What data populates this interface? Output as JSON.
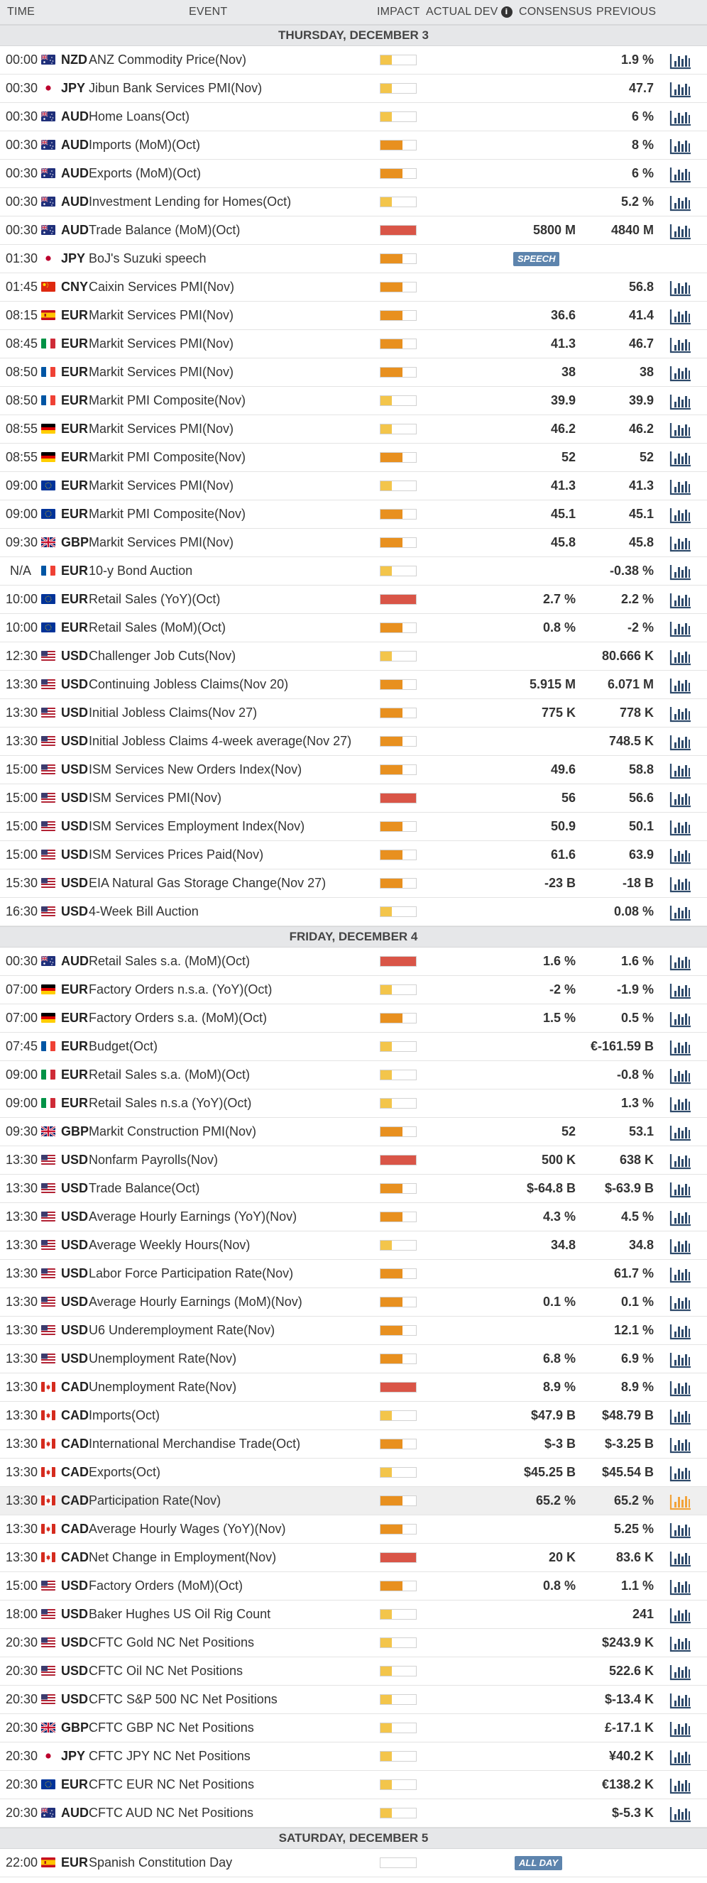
{
  "header": {
    "time": "TIME",
    "event": "EVENT",
    "impact": "IMPACT",
    "actual": "ACTUAL",
    "dev": "DEV",
    "consensus": "CONSENSUS",
    "previous": "PREVIOUS"
  },
  "colors": {
    "impact_low": "#f3c54b",
    "impact_medium": "#e8901f",
    "impact_high": "#d95547",
    "chart_icon": "#2e4a6b",
    "chart_icon_active": "#f2a33a",
    "badge_bg": "#5d84ad"
  },
  "days": [
    {
      "title": "THURSDAY, DECEMBER 3",
      "rows": [
        {
          "time": "00:00",
          "flag": "au",
          "currency": "NZD",
          "event": "ANZ Commodity Price(Nov)",
          "impact": "low",
          "consensus": "",
          "previous": "1.9 %"
        },
        {
          "time": "00:30",
          "flag": "jp",
          "currency": "JPY",
          "event": "Jibun Bank Services PMI(Nov)",
          "impact": "low",
          "consensus": "",
          "previous": "47.7"
        },
        {
          "time": "00:30",
          "flag": "au",
          "currency": "AUD",
          "event": "Home Loans(Oct)",
          "impact": "low",
          "consensus": "",
          "previous": "6 %"
        },
        {
          "time": "00:30",
          "flag": "au",
          "currency": "AUD",
          "event": "Imports (MoM)(Oct)",
          "impact": "medium",
          "consensus": "",
          "previous": "8 %"
        },
        {
          "time": "00:30",
          "flag": "au",
          "currency": "AUD",
          "event": "Exports (MoM)(Oct)",
          "impact": "medium",
          "consensus": "",
          "previous": "6 %"
        },
        {
          "time": "00:30",
          "flag": "au",
          "currency": "AUD",
          "event": "Investment Lending for Homes(Oct)",
          "impact": "low",
          "consensus": "",
          "previous": "5.2 %"
        },
        {
          "time": "00:30",
          "flag": "au",
          "currency": "AUD",
          "event": "Trade Balance (MoM)(Oct)",
          "impact": "high",
          "consensus": "5800 M",
          "previous": "4840 M"
        },
        {
          "time": "01:30",
          "flag": "jp",
          "currency": "JPY",
          "event": "BoJ's Suzuki speech",
          "impact": "medium",
          "consensus": "",
          "previous": "",
          "badge": "SPEECH",
          "nochart": true
        },
        {
          "time": "01:45",
          "flag": "cn",
          "currency": "CNY",
          "event": "Caixin Services PMI(Nov)",
          "impact": "medium",
          "consensus": "",
          "previous": "56.8"
        },
        {
          "time": "08:15",
          "flag": "es",
          "currency": "EUR",
          "event": "Markit Services PMI(Nov)",
          "impact": "medium",
          "consensus": "36.6",
          "previous": "41.4"
        },
        {
          "time": "08:45",
          "flag": "it",
          "currency": "EUR",
          "event": "Markit Services PMI(Nov)",
          "impact": "medium",
          "consensus": "41.3",
          "previous": "46.7"
        },
        {
          "time": "08:50",
          "flag": "fr",
          "currency": "EUR",
          "event": "Markit Services PMI(Nov)",
          "impact": "medium",
          "consensus": "38",
          "previous": "38"
        },
        {
          "time": "08:50",
          "flag": "fr",
          "currency": "EUR",
          "event": "Markit PMI Composite(Nov)",
          "impact": "low",
          "consensus": "39.9",
          "previous": "39.9"
        },
        {
          "time": "08:55",
          "flag": "de",
          "currency": "EUR",
          "event": "Markit Services PMI(Nov)",
          "impact": "low",
          "consensus": "46.2",
          "previous": "46.2"
        },
        {
          "time": "08:55",
          "flag": "de",
          "currency": "EUR",
          "event": "Markit PMI Composite(Nov)",
          "impact": "medium",
          "consensus": "52",
          "previous": "52"
        },
        {
          "time": "09:00",
          "flag": "eu",
          "currency": "EUR",
          "event": "Markit Services PMI(Nov)",
          "impact": "low",
          "consensus": "41.3",
          "previous": "41.3"
        },
        {
          "time": "09:00",
          "flag": "eu",
          "currency": "EUR",
          "event": "Markit PMI Composite(Nov)",
          "impact": "medium",
          "consensus": "45.1",
          "previous": "45.1"
        },
        {
          "time": "09:30",
          "flag": "gb",
          "currency": "GBP",
          "event": "Markit Services PMI(Nov)",
          "impact": "medium",
          "consensus": "45.8",
          "previous": "45.8"
        },
        {
          "time": "N/A",
          "flag": "fr",
          "currency": "EUR",
          "event": "10-y Bond Auction",
          "impact": "low",
          "consensus": "",
          "previous": "-0.38 %"
        },
        {
          "time": "10:00",
          "flag": "eu",
          "currency": "EUR",
          "event": "Retail Sales (YoY)(Oct)",
          "impact": "high",
          "consensus": "2.7 %",
          "previous": "2.2 %"
        },
        {
          "time": "10:00",
          "flag": "eu",
          "currency": "EUR",
          "event": "Retail Sales (MoM)(Oct)",
          "impact": "medium",
          "consensus": "0.8 %",
          "previous": "-2 %"
        },
        {
          "time": "12:30",
          "flag": "us",
          "currency": "USD",
          "event": "Challenger Job Cuts(Nov)",
          "impact": "low",
          "consensus": "",
          "previous": "80.666 K"
        },
        {
          "time": "13:30",
          "flag": "us",
          "currency": "USD",
          "event": "Continuing Jobless Claims(Nov 20)",
          "impact": "medium",
          "consensus": "5.915 M",
          "previous": "6.071 M"
        },
        {
          "time": "13:30",
          "flag": "us",
          "currency": "USD",
          "event": "Initial Jobless Claims(Nov 27)",
          "impact": "medium",
          "consensus": "775 K",
          "previous": "778 K"
        },
        {
          "time": "13:30",
          "flag": "us",
          "currency": "USD",
          "event": "Initial Jobless Claims 4-week average(Nov 27)",
          "impact": "medium",
          "consensus": "",
          "previous": "748.5 K"
        },
        {
          "time": "15:00",
          "flag": "us",
          "currency": "USD",
          "event": "ISM Services New Orders Index(Nov)",
          "impact": "medium",
          "consensus": "49.6",
          "previous": "58.8"
        },
        {
          "time": "15:00",
          "flag": "us",
          "currency": "USD",
          "event": "ISM Services PMI(Nov)",
          "impact": "high",
          "consensus": "56",
          "previous": "56.6"
        },
        {
          "time": "15:00",
          "flag": "us",
          "currency": "USD",
          "event": "ISM Services Employment Index(Nov)",
          "impact": "medium",
          "consensus": "50.9",
          "previous": "50.1"
        },
        {
          "time": "15:00",
          "flag": "us",
          "currency": "USD",
          "event": "ISM Services Prices Paid(Nov)",
          "impact": "medium",
          "consensus": "61.6",
          "previous": "63.9"
        },
        {
          "time": "15:30",
          "flag": "us",
          "currency": "USD",
          "event": "EIA Natural Gas Storage Change(Nov 27)",
          "impact": "medium",
          "consensus": "-23 B",
          "previous": "-18 B"
        },
        {
          "time": "16:30",
          "flag": "us",
          "currency": "USD",
          "event": "4-Week Bill Auction",
          "impact": "low",
          "consensus": "",
          "previous": "0.08 %"
        }
      ]
    },
    {
      "title": "FRIDAY, DECEMBER 4",
      "rows": [
        {
          "time": "00:30",
          "flag": "au",
          "currency": "AUD",
          "event": "Retail Sales s.a. (MoM)(Oct)",
          "impact": "high",
          "consensus": "1.6 %",
          "previous": "1.6 %"
        },
        {
          "time": "07:00",
          "flag": "de",
          "currency": "EUR",
          "event": "Factory Orders n.s.a. (YoY)(Oct)",
          "impact": "low",
          "consensus": "-2 %",
          "previous": "-1.9 %"
        },
        {
          "time": "07:00",
          "flag": "de",
          "currency": "EUR",
          "event": "Factory Orders s.a. (MoM)(Oct)",
          "impact": "medium",
          "consensus": "1.5 %",
          "previous": "0.5 %"
        },
        {
          "time": "07:45",
          "flag": "fr",
          "currency": "EUR",
          "event": "Budget(Oct)",
          "impact": "low",
          "consensus": "",
          "previous": "€-161.59 B"
        },
        {
          "time": "09:00",
          "flag": "it",
          "currency": "EUR",
          "event": "Retail Sales s.a. (MoM)(Oct)",
          "impact": "low",
          "consensus": "",
          "previous": "-0.8 %"
        },
        {
          "time": "09:00",
          "flag": "it",
          "currency": "EUR",
          "event": "Retail Sales n.s.a (YoY)(Oct)",
          "impact": "low",
          "consensus": "",
          "previous": "1.3 %"
        },
        {
          "time": "09:30",
          "flag": "gb",
          "currency": "GBP",
          "event": "Markit Construction PMI(Nov)",
          "impact": "medium",
          "consensus": "52",
          "previous": "53.1"
        },
        {
          "time": "13:30",
          "flag": "us",
          "currency": "USD",
          "event": "Nonfarm Payrolls(Nov)",
          "impact": "high",
          "consensus": "500 K",
          "previous": "638 K"
        },
        {
          "time": "13:30",
          "flag": "us",
          "currency": "USD",
          "event": "Trade Balance(Oct)",
          "impact": "medium",
          "consensus": "$-64.8 B",
          "previous": "$-63.9 B"
        },
        {
          "time": "13:30",
          "flag": "us",
          "currency": "USD",
          "event": "Average Hourly Earnings (YoY)(Nov)",
          "impact": "medium",
          "consensus": "4.3 %",
          "previous": "4.5 %"
        },
        {
          "time": "13:30",
          "flag": "us",
          "currency": "USD",
          "event": "Average Weekly Hours(Nov)",
          "impact": "low",
          "consensus": "34.8",
          "previous": "34.8"
        },
        {
          "time": "13:30",
          "flag": "us",
          "currency": "USD",
          "event": "Labor Force Participation Rate(Nov)",
          "impact": "medium",
          "consensus": "",
          "previous": "61.7 %"
        },
        {
          "time": "13:30",
          "flag": "us",
          "currency": "USD",
          "event": "Average Hourly Earnings (MoM)(Nov)",
          "impact": "medium",
          "consensus": "0.1 %",
          "previous": "0.1 %"
        },
        {
          "time": "13:30",
          "flag": "us",
          "currency": "USD",
          "event": "U6 Underemployment Rate(Nov)",
          "impact": "medium",
          "consensus": "",
          "previous": "12.1 %"
        },
        {
          "time": "13:30",
          "flag": "us",
          "currency": "USD",
          "event": "Unemployment Rate(Nov)",
          "impact": "medium",
          "consensus": "6.8 %",
          "previous": "6.9 %"
        },
        {
          "time": "13:30",
          "flag": "ca",
          "currency": "CAD",
          "event": "Unemployment Rate(Nov)",
          "impact": "high",
          "consensus": "8.9 %",
          "previous": "8.9 %"
        },
        {
          "time": "13:30",
          "flag": "ca",
          "currency": "CAD",
          "event": "Imports(Oct)",
          "impact": "low",
          "consensus": "$47.9 B",
          "previous": "$48.79 B"
        },
        {
          "time": "13:30",
          "flag": "ca",
          "currency": "CAD",
          "event": "International Merchandise Trade(Oct)",
          "impact": "medium",
          "consensus": "$-3 B",
          "previous": "$-3.25 B"
        },
        {
          "time": "13:30",
          "flag": "ca",
          "currency": "CAD",
          "event": "Exports(Oct)",
          "impact": "low",
          "consensus": "$45.25 B",
          "previous": "$45.54 B"
        },
        {
          "time": "13:30",
          "flag": "ca",
          "currency": "CAD",
          "event": "Participation Rate(Nov)",
          "impact": "medium",
          "consensus": "65.2 %",
          "previous": "65.2 %",
          "highlight": true
        },
        {
          "time": "13:30",
          "flag": "ca",
          "currency": "CAD",
          "event": "Average Hourly Wages (YoY)(Nov)",
          "impact": "medium",
          "consensus": "",
          "previous": "5.25 %"
        },
        {
          "time": "13:30",
          "flag": "ca",
          "currency": "CAD",
          "event": "Net Change in Employment(Nov)",
          "impact": "high",
          "consensus": "20 K",
          "previous": "83.6 K"
        },
        {
          "time": "15:00",
          "flag": "us",
          "currency": "USD",
          "event": "Factory Orders (MoM)(Oct)",
          "impact": "medium",
          "consensus": "0.8 %",
          "previous": "1.1 %"
        },
        {
          "time": "18:00",
          "flag": "us",
          "currency": "USD",
          "event": "Baker Hughes US Oil Rig Count",
          "impact": "low",
          "consensus": "",
          "previous": "241"
        },
        {
          "time": "20:30",
          "flag": "us",
          "currency": "USD",
          "event": "CFTC Gold NC Net Positions",
          "impact": "low",
          "consensus": "",
          "previous": "$243.9 K"
        },
        {
          "time": "20:30",
          "flag": "us",
          "currency": "USD",
          "event": "CFTC Oil NC Net Positions",
          "impact": "low",
          "consensus": "",
          "previous": "522.6 K"
        },
        {
          "time": "20:30",
          "flag": "us",
          "currency": "USD",
          "event": "CFTC S&P 500 NC Net Positions",
          "impact": "low",
          "consensus": "",
          "previous": "$-13.4 K"
        },
        {
          "time": "20:30",
          "flag": "gb",
          "currency": "GBP",
          "event": "CFTC GBP NC Net Positions",
          "impact": "low",
          "consensus": "",
          "previous": "£-17.1 K"
        },
        {
          "time": "20:30",
          "flag": "jp",
          "currency": "JPY",
          "event": "CFTC JPY NC Net Positions",
          "impact": "low",
          "consensus": "",
          "previous": "¥40.2 K"
        },
        {
          "time": "20:30",
          "flag": "eu",
          "currency": "EUR",
          "event": "CFTC EUR NC Net Positions",
          "impact": "low",
          "consensus": "",
          "previous": "€138.2 K"
        },
        {
          "time": "20:30",
          "flag": "au",
          "currency": "AUD",
          "event": "CFTC AUD NC Net Positions",
          "impact": "low",
          "consensus": "",
          "previous": "$-5.3 K"
        }
      ]
    },
    {
      "title": "SATURDAY, DECEMBER 5",
      "rows": [
        {
          "time": "22:00",
          "flag": "es",
          "currency": "EUR",
          "event": "Spanish Constitution Day",
          "impact": "none",
          "consensus": "",
          "previous": "",
          "badge": "ALL DAY",
          "nochart": true
        }
      ]
    }
  ]
}
